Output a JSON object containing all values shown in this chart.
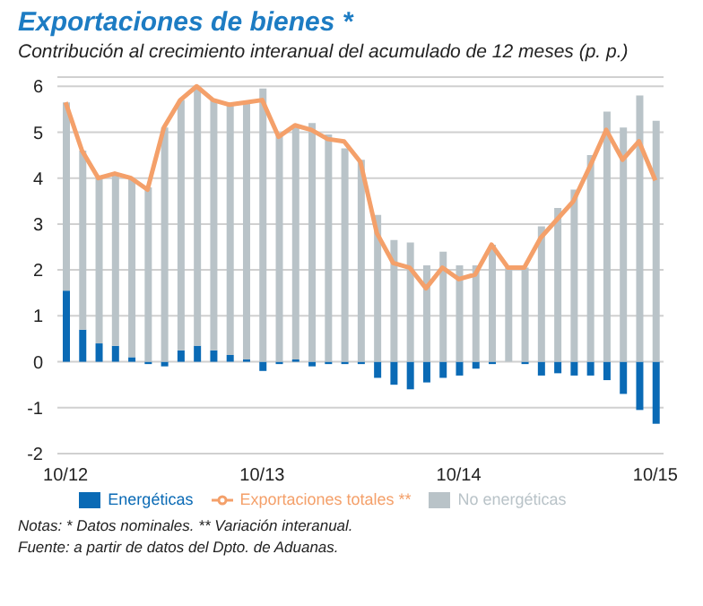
{
  "chart_data": {
    "type": "bar",
    "title": "Exportaciones de bienes *",
    "subtitle": "Contribución al crecimiento interanual del acumulado  de 12 meses (p. p.)",
    "categories": [
      "10/12",
      null,
      null,
      null,
      null,
      null,
      null,
      null,
      null,
      null,
      null,
      null,
      "10/13",
      null,
      null,
      null,
      null,
      null,
      null,
      null,
      null,
      null,
      null,
      null,
      "10/14",
      null,
      null,
      null,
      null,
      null,
      null,
      null,
      null,
      null,
      null,
      null,
      "10/15"
    ],
    "stacked": true,
    "series": [
      {
        "name": "Energéticas",
        "color": "#0a6ab5",
        "values": [
          1.55,
          0.7,
          0.4,
          0.35,
          0.1,
          -0.05,
          -0.1,
          0.25,
          0.35,
          0.25,
          0.15,
          0.05,
          -0.2,
          -0.05,
          0.05,
          -0.1,
          -0.05,
          -0.05,
          -0.05,
          -0.35,
          -0.5,
          -0.6,
          -0.45,
          -0.35,
          -0.3,
          -0.15,
          -0.05,
          0,
          -0.05,
          -0.3,
          -0.25,
          -0.3,
          -0.3,
          -0.4,
          -0.7,
          -1.05,
          -1.35
        ]
      },
      {
        "name": "No energéticas",
        "color": "#b9c3c8",
        "values": [
          4.1,
          3.9,
          3.6,
          3.7,
          3.9,
          3.8,
          5.1,
          5.45,
          5.65,
          5.45,
          5.45,
          5.6,
          5.95,
          4.95,
          5.05,
          5.2,
          4.95,
          4.65,
          4.4,
          3.2,
          2.65,
          2.6,
          2.1,
          2.4,
          2.1,
          2.1,
          2.55,
          2.05,
          2.05,
          2.95,
          3.35,
          3.75,
          4.5,
          5.45,
          5.1,
          5.8,
          5.25
        ]
      },
      {
        "name": "Exportaciones totales **",
        "type": "line",
        "color": "#f4a06a",
        "values": [
          5.65,
          4.6,
          4,
          4.1,
          4,
          3.75,
          5.1,
          5.7,
          6,
          5.7,
          5.6,
          5.65,
          5.7,
          4.9,
          5.15,
          5.05,
          4.85,
          4.8,
          4.35,
          2.8,
          2.15,
          2.05,
          1.6,
          2.05,
          1.8,
          1.9,
          2.55,
          2.05,
          2.05,
          2.7,
          3.1,
          3.5,
          4.25,
          5.05,
          4.4,
          4.8,
          3.95
        ]
      }
    ],
    "ylim": [
      -2,
      6.2
    ],
    "yticks": [
      -2,
      -1,
      0,
      1,
      2,
      3,
      4,
      5,
      6
    ],
    "grid": "y",
    "legend": "bottom",
    "annotations": [
      "Notas: * Datos nominales.  ** Variación interanual.",
      "Fuente: a partir de datos del Dpto. de Aduanas."
    ]
  }
}
